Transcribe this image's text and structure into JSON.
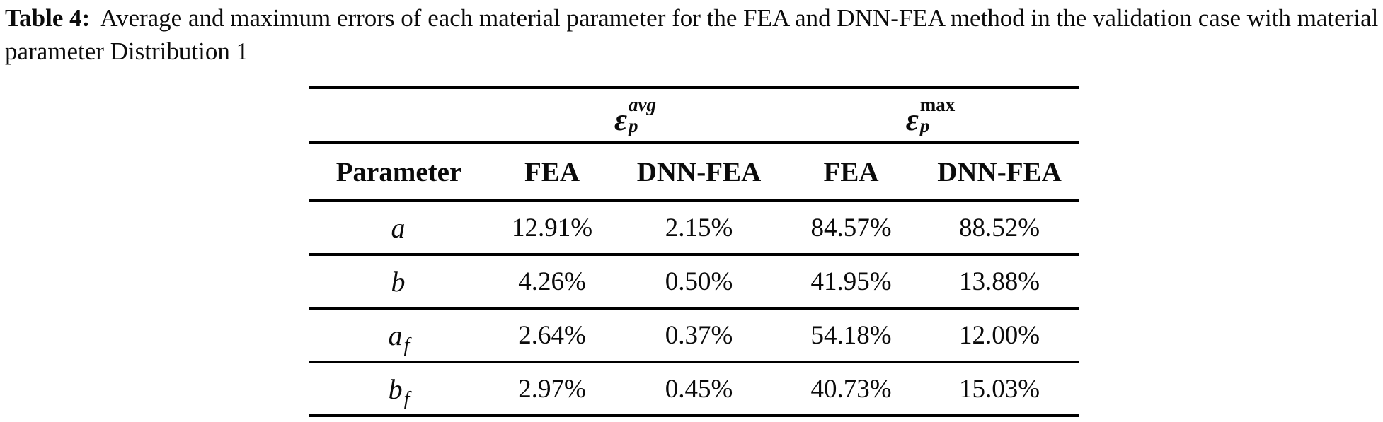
{
  "caption": {
    "label": "Table 4:",
    "text": "Average and maximum errors of each material parameter for the FEA and DNN-FEA method in the validation case with material parameter Distribution 1"
  },
  "table": {
    "col_groups": [
      {
        "symbol": "ε",
        "sub": "p",
        "sup": "avg"
      },
      {
        "symbol": "ε",
        "sub": "p",
        "sup": "max"
      }
    ],
    "headers": [
      "Parameter",
      "FEA",
      "DNN-FEA",
      "FEA",
      "DNN-FEA"
    ],
    "rows": [
      {
        "param": "a",
        "param_sub": "",
        "values": [
          "12.91%",
          "2.15%",
          "84.57%",
          "88.52%"
        ]
      },
      {
        "param": "b",
        "param_sub": "",
        "values": [
          "4.26%",
          "0.50%",
          "41.95%",
          "13.88%"
        ]
      },
      {
        "param": "a",
        "param_sub": "f",
        "values": [
          "2.64%",
          "0.37%",
          "54.18%",
          "12.00%"
        ]
      },
      {
        "param": "b",
        "param_sub": "f",
        "values": [
          "2.97%",
          "0.45%",
          "40.73%",
          "15.03%"
        ]
      }
    ]
  },
  "colors": {
    "text": "#0b0b0b",
    "rule": "#000000",
    "background": "#ffffff"
  }
}
